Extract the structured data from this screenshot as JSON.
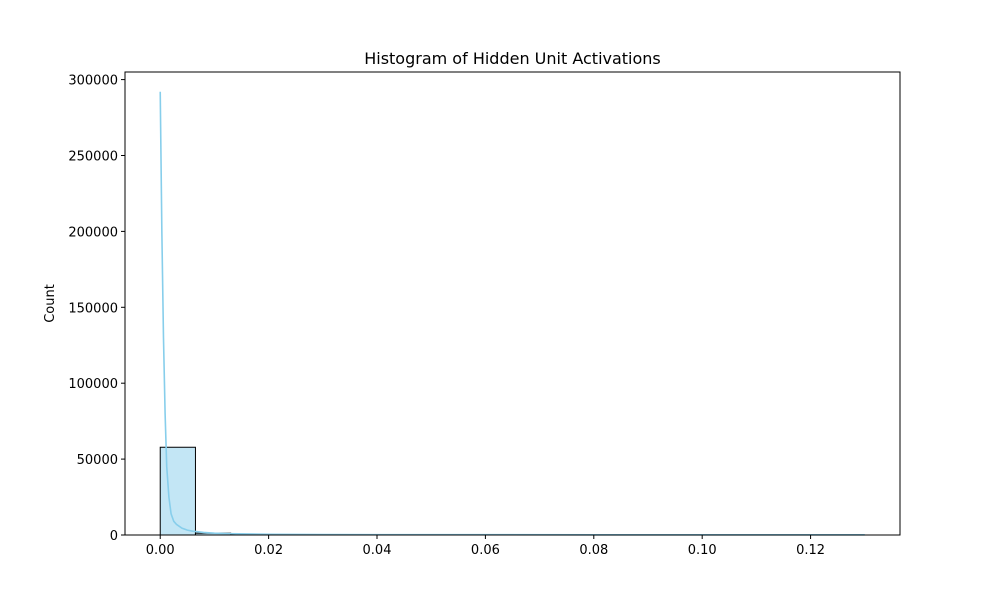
{
  "chart_data": {
    "type": "bar",
    "title": "Histogram of Hidden Unit Activations",
    "xlabel": "",
    "ylabel": "Count",
    "xlim": [
      -0.0065,
      0.1365
    ],
    "ylim": [
      0,
      305000
    ],
    "x_ticks": [
      0.0,
      0.02,
      0.04,
      0.06,
      0.08,
      0.1,
      0.12
    ],
    "x_tick_labels": [
      "0.00",
      "0.02",
      "0.04",
      "0.06",
      "0.08",
      "0.10",
      "0.12"
    ],
    "y_ticks": [
      0,
      50000,
      100000,
      150000,
      200000,
      250000,
      300000
    ],
    "y_tick_labels": [
      "0",
      "50000",
      "100000",
      "150000",
      "200000",
      "250000",
      "300000"
    ],
    "grid": false,
    "bin_edges": [
      0.0,
      0.0065,
      0.013,
      0.0195,
      0.026,
      0.0325,
      0.039,
      0.0455,
      0.052,
      0.0585,
      0.065,
      0.0715,
      0.078,
      0.0845,
      0.091,
      0.0975,
      0.104,
      0.1105,
      0.117,
      0.1235,
      0.13
    ],
    "counts": [
      57800,
      1200,
      400,
      200,
      120,
      80,
      60,
      40,
      30,
      25,
      20,
      15,
      12,
      10,
      8,
      6,
      5,
      4,
      3,
      2
    ],
    "kde": {
      "x": [
        0.0,
        0.0003,
        0.0006,
        0.0009,
        0.0012,
        0.0016,
        0.002,
        0.0025,
        0.003,
        0.004,
        0.005,
        0.006,
        0.008,
        0.01,
        0.013,
        0.016,
        0.02,
        0.03,
        0.05,
        0.08,
        0.1,
        0.13
      ],
      "y": [
        292000,
        200000,
        130000,
        80000,
        45000,
        25000,
        14000,
        9000,
        7000,
        4500,
        3200,
        2500,
        1700,
        1200,
        900,
        700,
        500,
        300,
        200,
        150,
        120,
        100
      ]
    },
    "colors": {
      "bar_fill": "#87ceeb",
      "bar_edge": "#000000",
      "kde_line": "#87ceeb"
    }
  }
}
